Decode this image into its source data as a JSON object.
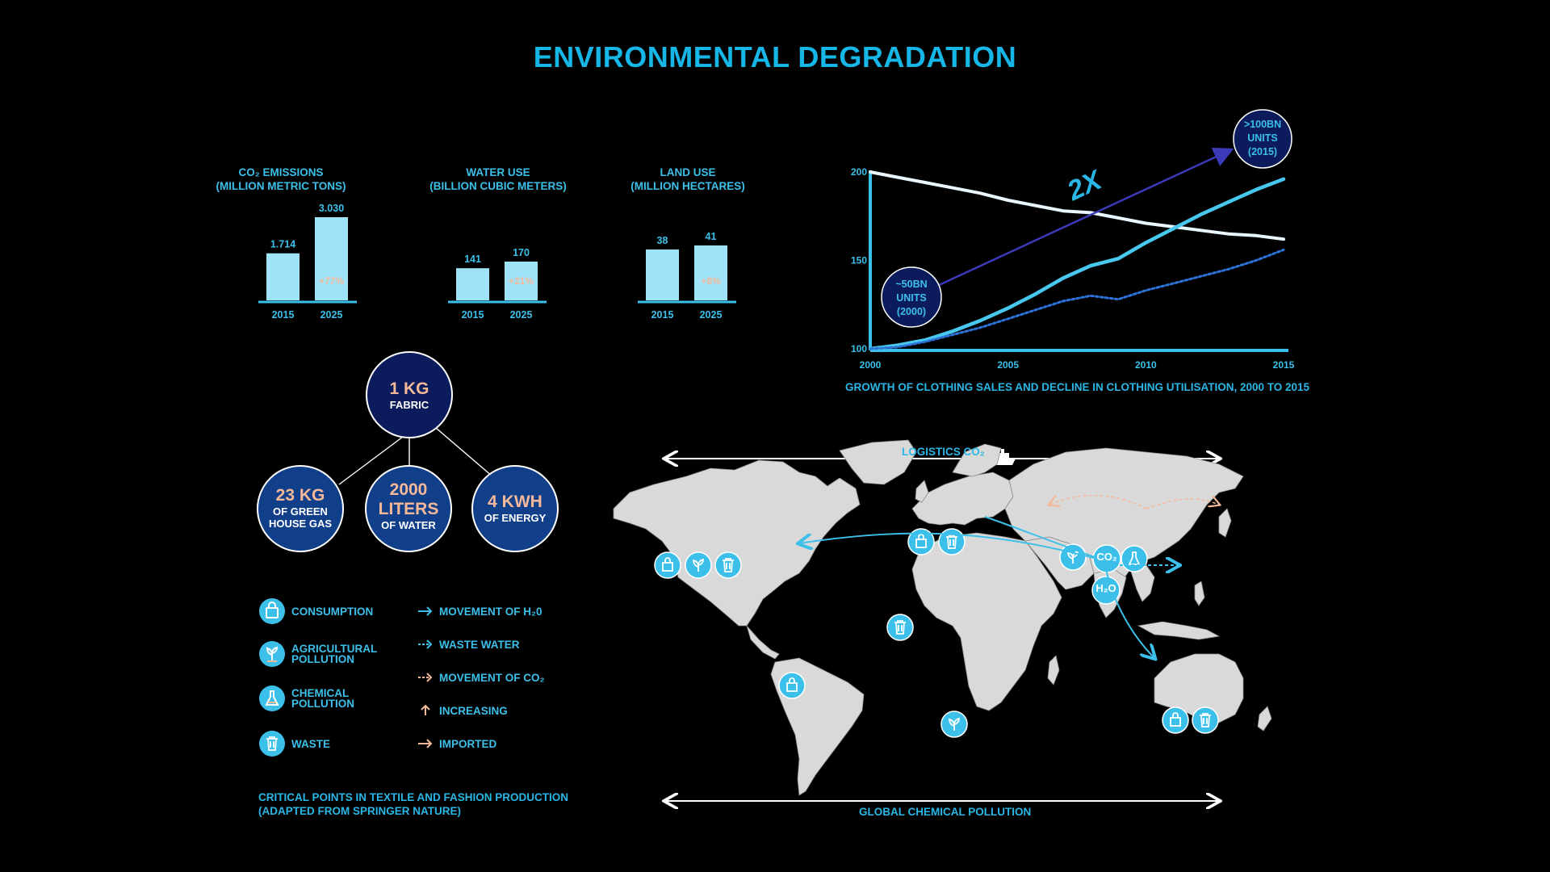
{
  "title": "ENVIRONMENTAL DEGRADATION",
  "colors": {
    "accent": "#3cc0ea",
    "bar": "#9ee3f7",
    "navy": "#0c1b5c",
    "blue": "#123f8a",
    "peach": "#f5b99a",
    "land": "#d9d9d9"
  },
  "mini_charts": [
    {
      "title_l1": "CO₂ EMISSIONS",
      "title_l2": "(MILLION METRIC TONS)",
      "categories": [
        "2015",
        "2025"
      ],
      "value_labels": [
        "1.714",
        "3.030"
      ],
      "values": [
        1714,
        3030
      ],
      "change": "+77%"
    },
    {
      "title_l1": "WATER USE",
      "title_l2": "(BILLION CUBIC METERS)",
      "categories": [
        "2015",
        "2025"
      ],
      "value_labels": [
        "141",
        "170"
      ],
      "values": [
        141,
        170
      ],
      "change": "+21%"
    },
    {
      "title_l1": "LAND USE",
      "title_l2": "(MILLION HECTARES)",
      "categories": [
        "2015",
        "2025"
      ],
      "value_labels": [
        "38",
        "41"
      ],
      "values": [
        38,
        41
      ],
      "change": "+8%"
    }
  ],
  "chart_data": [
    {
      "type": "bar",
      "title": "CO₂ EMISSIONS (MILLION METRIC TONS)",
      "categories": [
        "2015",
        "2025"
      ],
      "values": [
        1714,
        3030
      ]
    },
    {
      "type": "bar",
      "title": "WATER USE (BILLION CUBIC METERS)",
      "categories": [
        "2015",
        "2025"
      ],
      "values": [
        141,
        170
      ]
    },
    {
      "type": "bar",
      "title": "LAND USE (MILLION HECTARES)",
      "categories": [
        "2015",
        "2025"
      ],
      "values": [
        38,
        41
      ]
    },
    {
      "type": "line",
      "title": "GROWTH OF CLOTHING SALES AND DECLINE IN CLOTHING UTILISATION, 2000 TO 2015",
      "x_ticks": [
        "2000",
        "2005",
        "2010",
        "2015"
      ],
      "y_ticks": [
        "200",
        "150",
        "100"
      ],
      "xlim": [
        2000,
        2015
      ],
      "ylim": [
        100,
        200
      ],
      "grid": false,
      "series": [
        {
          "style": "solid-white",
          "x": [
            2000,
            2001,
            2002,
            2003,
            2004,
            2005,
            2006,
            2007,
            2008,
            2009,
            2010,
            2011,
            2012,
            2013,
            2014,
            2015
          ],
          "y": [
            200,
            197,
            194,
            191,
            188,
            184,
            181,
            178,
            177,
            174,
            171,
            169,
            167,
            165,
            164,
            162
          ]
        },
        {
          "style": "solid-cyan",
          "x": [
            2000,
            2001,
            2002,
            2003,
            2004,
            2005,
            2006,
            2007,
            2008,
            2009,
            2010,
            2011,
            2012,
            2013,
            2014,
            2015
          ],
          "y": [
            100,
            102,
            105,
            110,
            116,
            123,
            131,
            140,
            147,
            151,
            160,
            168,
            176,
            183,
            190,
            196
          ]
        },
        {
          "style": "dotted-blue",
          "x": [
            2000,
            2001,
            2002,
            2003,
            2004,
            2005,
            2006,
            2007,
            2008,
            2009,
            2010,
            2011,
            2012,
            2013,
            2014,
            2015
          ],
          "y": [
            100,
            101,
            104,
            108,
            112,
            117,
            122,
            127,
            130,
            128,
            133,
            137,
            141,
            145,
            150,
            156
          ]
        }
      ],
      "annotations": {
        "start": {
          "l1": "~50BN",
          "l2": "UNITS",
          "l3": "(2000)"
        },
        "end": {
          "l1": ">100BN",
          "l2": "UNITS",
          "l3": "(2015)"
        },
        "multiplier": "2X"
      }
    }
  ],
  "fabric": {
    "top": {
      "big": "1 KG",
      "small": "FABRIC"
    },
    "children": [
      {
        "big": "23 KG",
        "l1": "OF GREEN",
        "l2": "HOUSE GAS"
      },
      {
        "big": "2000",
        "big2": "LITERS",
        "l1": "OF WATER"
      },
      {
        "big": "4 KWH",
        "l1": "OF ENERGY"
      }
    ]
  },
  "legend_icons": [
    {
      "label": "CONSUMPTION",
      "icon": "shopping-bag-icon"
    },
    {
      "label": "AGRICULTURAL POLLUTION",
      "icon": "plant-icon"
    },
    {
      "label": "CHEMICAL POLLUTION",
      "icon": "flask-icon"
    },
    {
      "label": "WASTE",
      "icon": "trash-icon"
    }
  ],
  "legend_arrows": [
    {
      "label": "MOVEMENT OF H₂0",
      "icon": "solid-arrow-icon"
    },
    {
      "label": "WASTE WATER",
      "icon": "dotted-arrow-icon"
    },
    {
      "label": "MOVEMENT OF CO₂",
      "icon": "dotted-peach-arrow-icon"
    },
    {
      "label": "INCREASING",
      "icon": "up-arrow-icon"
    },
    {
      "label": "IMPORTED",
      "icon": "peach-arrow-icon"
    }
  ],
  "footnote": {
    "l1": "CRITICAL POINTS IN TEXTILE AND FASHION PRODUCTION",
    "l2": "(ADAPTED FROM SPRINGER NATURE)"
  },
  "map": {
    "top_label": "LOGISTICS CO₂",
    "bottom_label": "GLOBAL CHEMICAL POLLUTION",
    "co2_label": "CO₂",
    "h2o_label": "H₂O"
  }
}
